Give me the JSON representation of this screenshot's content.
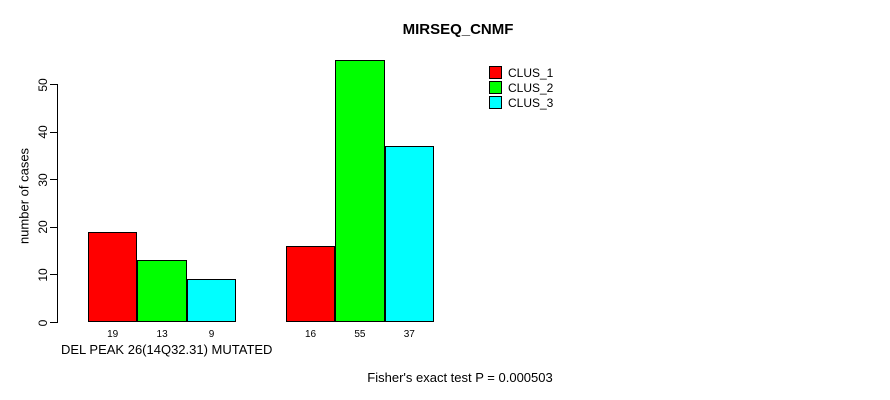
{
  "chart_data": {
    "type": "bar",
    "title": "MIRSEQ_CNMF",
    "ylabel": "number of cases",
    "xlabel": "DEL PEAK 26(14Q32.31) MUTATED",
    "footnote": "Fisher's exact test P = 0.000503",
    "ylim": [
      0,
      55
    ],
    "yticks": [
      0,
      10,
      20,
      30,
      40,
      50
    ],
    "grid": false,
    "legend_position": "top-right",
    "series": [
      {
        "name": "CLUS_1",
        "color": "#ff0000",
        "values": [
          19,
          16
        ]
      },
      {
        "name": "CLUS_2",
        "color": "#00ff00",
        "values": [
          13,
          55
        ]
      },
      {
        "name": "CLUS_3",
        "color": "#00ffff",
        "values": [
          9,
          37
        ]
      }
    ],
    "bar_labels": [
      [
        "19",
        "13",
        "9"
      ],
      [
        "16",
        "55",
        "37"
      ]
    ],
    "colors": {
      "background": "#ffffff",
      "axis": "#000000",
      "text": "#000000"
    }
  }
}
